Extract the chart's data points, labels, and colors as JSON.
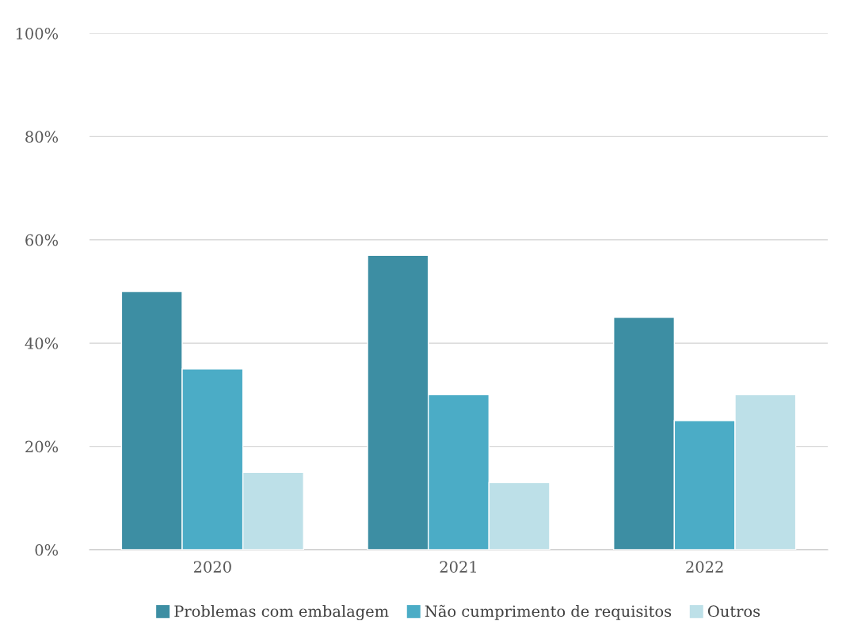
{
  "chart_data": {
    "type": "bar",
    "categories": [
      "2020",
      "2021",
      "2022"
    ],
    "series": [
      {
        "name": "Problemas com embalagem",
        "color": "#3d8ea3",
        "values": [
          50,
          57,
          45
        ]
      },
      {
        "name": "Não cumprimento de requisitos",
        "color": "#4bacc6",
        "values": [
          35,
          30,
          25
        ]
      },
      {
        "name": "Outros",
        "color": "#bde0e8",
        "values": [
          15,
          13,
          30
        ]
      }
    ],
    "ylim": [
      0,
      100
    ],
    "yticks": [
      {
        "value": 0,
        "label": "0%"
      },
      {
        "value": 20,
        "label": "20%"
      },
      {
        "value": 40,
        "label": "40%"
      },
      {
        "value": 60,
        "label": "60%"
      },
      {
        "value": 80,
        "label": "80%"
      },
      {
        "value": 100,
        "label": "100%"
      }
    ],
    "grid": "y",
    "legend": "bottom"
  }
}
